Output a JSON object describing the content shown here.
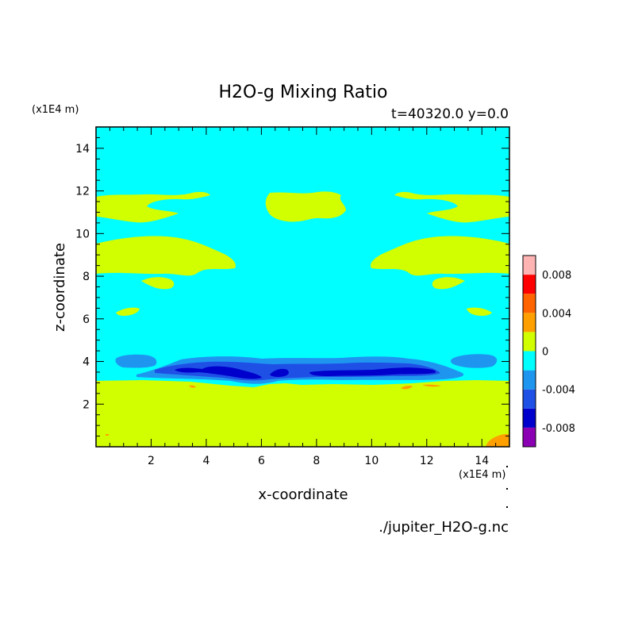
{
  "chart_data": {
    "type": "heatmap",
    "title": "H2O-g Mixing Ratio",
    "subtitle": "t=40320.0 y=0.0",
    "xlabel": "x-coordinate",
    "ylabel": "z-coordinate",
    "x_unit": "(x1E4 m)",
    "y_unit": "(x1E4 m)",
    "xlim": [
      0,
      15
    ],
    "ylim": [
      0,
      15
    ],
    "x_ticks": [
      2,
      4,
      6,
      8,
      10,
      12,
      14
    ],
    "y_ticks": [
      2,
      4,
      6,
      8,
      10,
      12,
      14
    ],
    "background_level": "0 to -0.002",
    "colorbar": {
      "levels": [
        -0.01,
        -0.008,
        -0.006,
        -0.004,
        -0.002,
        0,
        0.002,
        0.004,
        0.006,
        0.008,
        0.01
      ],
      "colors": [
        "#8c00b4",
        "#0000cc",
        "#1e50e6",
        "#1e96f0",
        "#00ffff",
        "#d2ff00",
        "#ffa000",
        "#ff6400",
        "#ff0000",
        "#ffb4b4"
      ],
      "tick_values": [
        -0.008,
        -0.004,
        0,
        0.004,
        0.008
      ],
      "tick_labels": [
        "-0.008",
        "-0.004",
        "0",
        "0.004",
        "0.008"
      ]
    },
    "regions": [
      {
        "level": "0 to 0.002",
        "x": [
          0,
          15
        ],
        "z": [
          0.0,
          3.1
        ],
        "desc": "lower layer"
      },
      {
        "level": "0 to 0.002",
        "x": [
          0,
          3.0
        ],
        "z": [
          11.0,
          12.0
        ]
      },
      {
        "level": "0 to 0.002",
        "x": [
          12.2,
          15
        ],
        "z": [
          11.0,
          12.0
        ]
      },
      {
        "level": "0 to 0.002",
        "x": [
          6.2,
          8.8
        ],
        "z": [
          10.8,
          11.9
        ]
      },
      {
        "level": "0 to 0.002",
        "x": [
          0,
          5.0
        ],
        "z": [
          8.0,
          9.8
        ]
      },
      {
        "level": "0 to 0.002",
        "x": [
          10.0,
          15
        ],
        "z": [
          8.0,
          9.8
        ]
      },
      {
        "level": "0 to 0.002",
        "x": [
          1.6,
          2.8
        ],
        "z": [
          7.5,
          8.0
        ]
      },
      {
        "level": "0 to 0.002",
        "x": [
          12.2,
          13.4
        ],
        "z": [
          7.5,
          8.0
        ]
      },
      {
        "level": "0 to 0.002",
        "x": [
          0.8,
          1.2
        ],
        "z": [
          6.2,
          6.6
        ]
      },
      {
        "level": "0 to 0.002",
        "x": [
          13.8,
          14.2
        ],
        "z": [
          6.2,
          6.6
        ]
      },
      {
        "level": "-0.004 to -0.002",
        "x": [
          1.0,
          13.8
        ],
        "z": [
          3.0,
          4.3
        ]
      },
      {
        "level": "-0.006 to -0.004",
        "x": [
          2.6,
          12.4
        ],
        "z": [
          3.3,
          3.8
        ]
      },
      {
        "level": "0.002 to 0.004",
        "x": [
          14.0,
          15
        ],
        "z": [
          0.0,
          0.5
        ]
      }
    ]
  },
  "footer": {
    "filename": "./jupiter_H2O-g.nc"
  }
}
